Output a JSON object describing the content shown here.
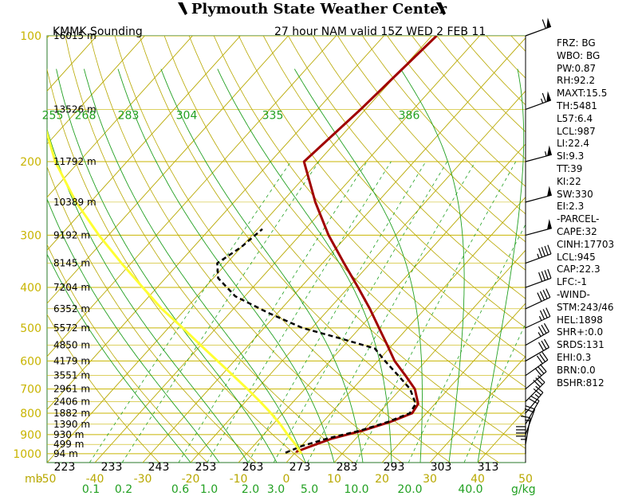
{
  "header": {
    "title": "Plymouth State Weather Center"
  },
  "colors": {
    "isobar": "#c8b400",
    "isotherm": "#b8a800",
    "dry_adiabat": "#b8a800",
    "moist_adiabat": "#22a022",
    "mixing_ratio": "#22a022",
    "temperature": "#a00000",
    "dewpoint": "#000000",
    "parcel": "#ffff33",
    "frame": "#2a7a2a"
  },
  "chart_data": {
    "type": "line",
    "title_left": "KMMK Sounding",
    "title_right": "27 hour NAM valid 15Z WED 2 FEB 11",
    "pressure_axis": {
      "unit_label": "mb",
      "levels": [
        100,
        200,
        300,
        400,
        500,
        600,
        700,
        800,
        900,
        1000
      ]
    },
    "temperature_axis": {
      "range": [
        -50,
        50
      ],
      "ticks": [
        -50,
        -40,
        -30,
        -20,
        -10,
        0,
        10,
        20,
        30,
        40,
        50
      ]
    },
    "heights": [
      {
        "p": 100,
        "label": "16015 m"
      },
      {
        "p": 150,
        "label": "13526 m"
      },
      {
        "p": 200,
        "label": "11792 m"
      },
      {
        "p": 250,
        "label": "10389 m"
      },
      {
        "p": 300,
        "label": "9192 m"
      },
      {
        "p": 350,
        "label": "8145 m"
      },
      {
        "p": 400,
        "label": "7204 m"
      },
      {
        "p": 450,
        "label": "6352 m"
      },
      {
        "p": 500,
        "label": "5572 m"
      },
      {
        "p": 550,
        "label": "4850 m"
      },
      {
        "p": 600,
        "label": "4179 m"
      },
      {
        "p": 650,
        "label": "3551 m"
      },
      {
        "p": 700,
        "label": "2961 m"
      },
      {
        "p": 750,
        "label": "2406 m"
      },
      {
        "p": 800,
        "label": "1882 m"
      },
      {
        "p": 850,
        "label": "1390 m"
      },
      {
        "p": 900,
        "label": "930 m"
      },
      {
        "p": 950,
        "label": "499 m"
      },
      {
        "p": 1000,
        "label": "94 m"
      }
    ],
    "theta_labels": [
      "223",
      "233",
      "243",
      "253",
      "263",
      "273",
      "283",
      "293",
      "303",
      "313"
    ],
    "theta_e_labels": [
      "255",
      "268",
      "283",
      "304",
      "335",
      "386"
    ],
    "mixing_ratio_labels": [
      "0.1",
      "0.2",
      "0.6",
      "1.0",
      "2.0",
      "3.0",
      "5.0",
      "10.0",
      "20.0",
      "40.0"
    ],
    "mixing_ratio_unit": "g/kg",
    "series": [
      {
        "points": [
          {
            "p": 990,
            "t": 0.0
          },
          {
            "p": 960,
            "t": 2.0
          },
          {
            "p": 920,
            "t": 5.0
          },
          {
            "p": 880,
            "t": 10.0
          },
          {
            "p": 840,
            "t": 14.0
          },
          {
            "p": 800,
            "t": 17.0
          },
          {
            "p": 760,
            "t": 16.5
          },
          {
            "p": 700,
            "t": 13.0
          },
          {
            "p": 650,
            "t": 8.5
          },
          {
            "p": 600,
            "t": 3.5
          },
          {
            "p": 550,
            "t": -1.0
          },
          {
            "p": 500,
            "t": -6.0
          },
          {
            "p": 450,
            "t": -11.5
          },
          {
            "p": 400,
            "t": -18.0
          },
          {
            "p": 350,
            "t": -25.5
          },
          {
            "p": 300,
            "t": -34.0
          },
          {
            "p": 250,
            "t": -43.0
          },
          {
            "p": 200,
            "t": -53.0
          },
          {
            "p": 150,
            "t": -51.0
          },
          {
            "p": 100,
            "t": -49.0
          }
        ]
      },
      {
        "points": [
          {
            "p": 995,
            "t": -2.0
          },
          {
            "p": 960,
            "t": 0.0
          },
          {
            "p": 920,
            "t": 4.0
          },
          {
            "p": 880,
            "t": 9.5
          },
          {
            "p": 840,
            "t": 13.5
          },
          {
            "p": 800,
            "t": 16.5
          },
          {
            "p": 760,
            "t": 16.0
          },
          {
            "p": 700,
            "t": 12.0
          },
          {
            "p": 650,
            "t": 7.0
          },
          {
            "p": 600,
            "t": 1.5
          },
          {
            "p": 560,
            "t": -3.0
          },
          {
            "p": 530,
            "t": -12.0
          },
          {
            "p": 500,
            "t": -22.0
          },
          {
            "p": 460,
            "t": -32.0
          },
          {
            "p": 420,
            "t": -42.0
          },
          {
            "p": 380,
            "t": -49.0
          },
          {
            "p": 350,
            "t": -52.0
          },
          {
            "p": 320,
            "t": -50.0
          },
          {
            "p": 290,
            "t": -49.0
          }
        ]
      },
      {
        "points": [
          {
            "p": 1000,
            "t": 1.5
          },
          {
            "p": 950,
            "t": -1.5
          },
          {
            "p": 900,
            "t": -5.0
          },
          {
            "p": 850,
            "t": -8.5
          },
          {
            "p": 800,
            "t": -12.5
          },
          {
            "p": 750,
            "t": -17.0
          },
          {
            "p": 700,
            "t": -22.0
          },
          {
            "p": 650,
            "t": -27.5
          },
          {
            "p": 600,
            "t": -33.5
          },
          {
            "p": 550,
            "t": -40.0
          },
          {
            "p": 500,
            "t": -47.0
          },
          {
            "p": 450,
            "t": -55.0
          },
          {
            "p": 400,
            "t": -63.0
          },
          {
            "p": 350,
            "t": -72.0
          },
          {
            "p": 300,
            "t": -82.0
          },
          {
            "p": 250,
            "t": -93.0
          },
          {
            "p": 200,
            "t": -105.0
          },
          {
            "p": 150,
            "t": -118.0
          },
          {
            "p": 120,
            "t": -125.0
          }
        ]
      }
    ],
    "wind_barbs": [
      {
        "p": 100,
        "dir": 250,
        "kt": 60
      },
      {
        "p": 150,
        "dir": 250,
        "kt": 65
      },
      {
        "p": 200,
        "dir": 255,
        "kt": 55
      },
      {
        "p": 250,
        "dir": 255,
        "kt": 50
      },
      {
        "p": 300,
        "dir": 255,
        "kt": 50
      },
      {
        "p": 350,
        "dir": 250,
        "kt": 45
      },
      {
        "p": 400,
        "dir": 250,
        "kt": 40
      },
      {
        "p": 450,
        "dir": 245,
        "kt": 40
      },
      {
        "p": 500,
        "dir": 245,
        "kt": 35
      },
      {
        "p": 550,
        "dir": 240,
        "kt": 35
      },
      {
        "p": 600,
        "dir": 240,
        "kt": 30
      },
      {
        "p": 650,
        "dir": 235,
        "kt": 30
      },
      {
        "p": 700,
        "dir": 230,
        "kt": 30
      },
      {
        "p": 750,
        "dir": 225,
        "kt": 30
      },
      {
        "p": 800,
        "dir": 220,
        "kt": 25
      },
      {
        "p": 850,
        "dir": 210,
        "kt": 20
      },
      {
        "p": 900,
        "dir": 200,
        "kt": 20
      },
      {
        "p": 950,
        "dir": 190,
        "kt": 15
      },
      {
        "p": 1000,
        "dir": 180,
        "kt": 45
      }
    ]
  },
  "indices": [
    "FRZ: BG",
    "WBO: BG",
    "PW:0.87",
    "RH:92.2",
    "MAXT:15.5",
    "TH:5481",
    "L57:6.4",
    "LCL:987",
    "LI:22.4",
    "SI:9.3",
    "TT:39",
    "KI:22",
    "SW:330",
    "EI:2.3",
    "-PARCEL-",
    "CAPE:32",
    "CINH:17703",
    "LCL:945",
    "CAP:22.3",
    "LFC:-1",
    "-WIND-",
    "STM:243/46",
    "HEL:1898",
    "SHR+:0.0",
    "SRDS:131",
    "EHI:0.3",
    "BRN:0.0",
    "BSHR:812"
  ]
}
